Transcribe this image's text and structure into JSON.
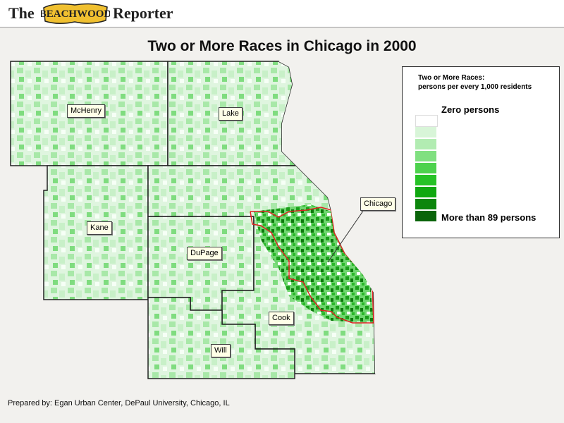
{
  "masthead": {
    "the": "The",
    "logo_text": "BEACHWOOD",
    "reporter": "Reporter"
  },
  "map": {
    "title": "Two or More Races in Chicago in 2000",
    "county_labels": {
      "mchenry": "McHenry",
      "lake": "Lake",
      "kane": "Kane",
      "dupage": "DuPage",
      "cook": "Cook",
      "will": "Will",
      "chicago": "Chicago"
    },
    "colors": {
      "land_light": "#e6f7e6",
      "county_border": "#222222",
      "city_border": "#dd2222",
      "lake": "#ffffff"
    }
  },
  "legend": {
    "heading_line1": "Two or More Races:",
    "heading_line2": "persons per every 1,000 residents",
    "low_label": "Zero persons",
    "high_label": "More than 89 persons",
    "swatches": [
      "#ffffff",
      "#d8f5d8",
      "#b2ecb2",
      "#80e080",
      "#4dd24d",
      "#26c226",
      "#10a810",
      "#0c860c",
      "#0a640a"
    ]
  },
  "credit": "Prepared by: Egan Urban Center, DePaul University, Chicago, IL"
}
